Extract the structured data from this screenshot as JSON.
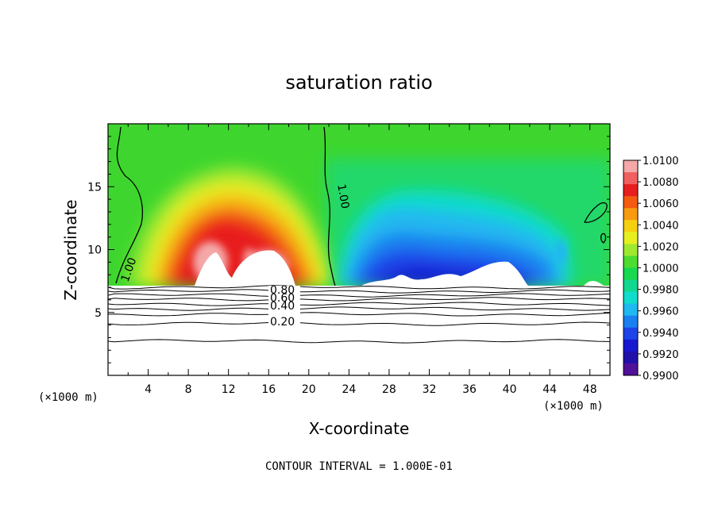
{
  "chart_data": {
    "type": "heatmap",
    "title": "saturation ratio",
    "xlabel": "X-coordinate",
    "ylabel": "Z-coordinate",
    "x_unit_left": "(×1000 m)",
    "x_unit_right": "(×1000 m)",
    "xlim": [
      0,
      50
    ],
    "ylim": [
      0,
      20
    ],
    "x_ticks": [
      "4",
      "8",
      "12",
      "16",
      "20",
      "24",
      "28",
      "32",
      "36",
      "40",
      "44",
      "48"
    ],
    "y_ticks": [
      "5",
      "10",
      "15"
    ],
    "note": "CONTOUR INTERVAL = 1.000E-01",
    "colorbar": {
      "levels": [
        "1.0100",
        "1.0080",
        "1.0060",
        "1.0040",
        "1.0020",
        "1.0000",
        "0.9980",
        "0.9960",
        "0.9940",
        "0.9920",
        "0.9900"
      ],
      "colors": [
        "#f4a8a8",
        "#f06060",
        "#e81e1e",
        "#f45a10",
        "#f79a10",
        "#f5d010",
        "#e6f020",
        "#a0e830",
        "#4ddc30",
        "#18d850",
        "#10d890",
        "#10dccc",
        "#20b8f0",
        "#1a80f0",
        "#1c44e8",
        "#1818d0",
        "#2010a8",
        "#501098"
      ]
    },
    "contour_labels": [
      "1.00",
      "1.00",
      "0.80",
      "0.60",
      "0.40",
      "0.20"
    ],
    "colors": {
      "background": "#ffffff",
      "neutral": "#2ecc2e",
      "supersaturated": "#e81e1e",
      "subsaturated": "#1c44e8"
    }
  }
}
